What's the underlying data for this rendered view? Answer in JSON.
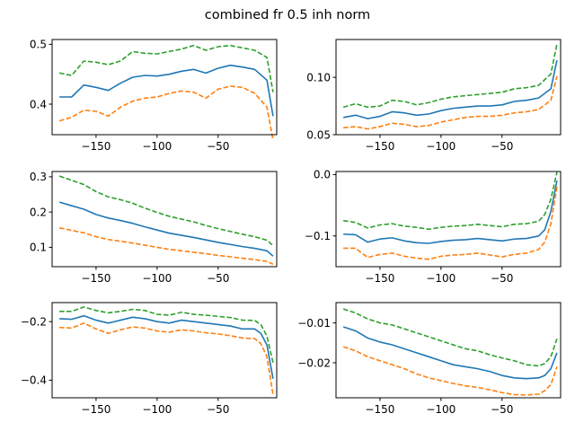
{
  "figure": {
    "title": "combined fr 0.5 inh norm"
  },
  "colors": {
    "mean": "#1f77b4",
    "lower": "#ff7f0e",
    "upper": "#2ca02c"
  },
  "chart_data": [
    {
      "type": "line",
      "xlim": [
        -186,
        -2
      ],
      "ylim": [
        0.349,
        0.508
      ],
      "xticks": [
        -150,
        -100,
        -50
      ],
      "yticks": [
        0.4,
        0.5
      ],
      "ytick_labels": [
        "0.4",
        "0.5"
      ],
      "x": [
        -180,
        -170,
        -160,
        -150,
        -140,
        -130,
        -120,
        -110,
        -100,
        -90,
        -80,
        -70,
        -60,
        -50,
        -40,
        -30,
        -20,
        -10,
        -5
      ],
      "series": [
        {
          "style": "solid",
          "color_key": "mean",
          "values": [
            0.412,
            0.412,
            0.432,
            0.428,
            0.423,
            0.435,
            0.445,
            0.448,
            0.447,
            0.45,
            0.455,
            0.458,
            0.452,
            0.46,
            0.465,
            0.462,
            0.458,
            0.44,
            0.38
          ]
        },
        {
          "style": "dashed",
          "color_key": "lower",
          "values": [
            0.372,
            0.378,
            0.39,
            0.388,
            0.38,
            0.395,
            0.405,
            0.41,
            0.412,
            0.418,
            0.422,
            0.42,
            0.41,
            0.425,
            0.43,
            0.428,
            0.418,
            0.395,
            0.34
          ]
        },
        {
          "style": "dashed",
          "color_key": "upper",
          "values": [
            0.452,
            0.448,
            0.472,
            0.47,
            0.466,
            0.472,
            0.488,
            0.485,
            0.484,
            0.488,
            0.492,
            0.498,
            0.49,
            0.496,
            0.498,
            0.494,
            0.49,
            0.478,
            0.42
          ]
        }
      ]
    },
    {
      "type": "line",
      "xlim": [
        -186,
        -2
      ],
      "ylim": [
        0.05,
        0.133
      ],
      "xticks": [
        -150,
        -100,
        -50
      ],
      "yticks": [
        0.05,
        0.1
      ],
      "ytick_labels": [
        "0.05",
        "0.10"
      ],
      "x": [
        -180,
        -170,
        -160,
        -150,
        -140,
        -130,
        -120,
        -110,
        -100,
        -90,
        -80,
        -70,
        -60,
        -50,
        -40,
        -30,
        -20,
        -10,
        -5
      ],
      "series": [
        {
          "style": "solid",
          "color_key": "mean",
          "values": [
            0.065,
            0.067,
            0.064,
            0.066,
            0.07,
            0.069,
            0.067,
            0.068,
            0.071,
            0.073,
            0.074,
            0.075,
            0.075,
            0.076,
            0.079,
            0.08,
            0.082,
            0.09,
            0.115
          ]
        },
        {
          "style": "dashed",
          "color_key": "lower",
          "values": [
            0.056,
            0.057,
            0.055,
            0.057,
            0.06,
            0.059,
            0.057,
            0.058,
            0.061,
            0.063,
            0.065,
            0.066,
            0.066,
            0.067,
            0.069,
            0.07,
            0.072,
            0.08,
            0.101
          ]
        },
        {
          "style": "dashed",
          "color_key": "upper",
          "values": [
            0.074,
            0.077,
            0.074,
            0.075,
            0.08,
            0.079,
            0.076,
            0.078,
            0.081,
            0.083,
            0.084,
            0.085,
            0.086,
            0.087,
            0.09,
            0.091,
            0.093,
            0.103,
            0.129
          ]
        }
      ]
    },
    {
      "type": "line",
      "xlim": [
        -186,
        -2
      ],
      "ylim": [
        0.045,
        0.315
      ],
      "xticks": [
        -150,
        -100,
        -50
      ],
      "yticks": [
        0.1,
        0.2,
        0.3
      ],
      "ytick_labels": [
        "0.1",
        "0.2",
        "0.3"
      ],
      "x": [
        -180,
        -170,
        -160,
        -150,
        -140,
        -130,
        -120,
        -110,
        -100,
        -90,
        -80,
        -70,
        -60,
        -50,
        -40,
        -30,
        -20,
        -10,
        -5
      ],
      "series": [
        {
          "style": "solid",
          "color_key": "mean",
          "values": [
            0.228,
            0.218,
            0.208,
            0.193,
            0.183,
            0.176,
            0.168,
            0.158,
            0.149,
            0.14,
            0.134,
            0.128,
            0.121,
            0.114,
            0.108,
            0.102,
            0.097,
            0.09,
            0.075
          ]
        },
        {
          "style": "dashed",
          "color_key": "lower",
          "values": [
            0.155,
            0.148,
            0.141,
            0.13,
            0.122,
            0.117,
            0.112,
            0.106,
            0.1,
            0.094,
            0.09,
            0.086,
            0.082,
            0.077,
            0.073,
            0.069,
            0.065,
            0.06,
            0.052
          ]
        },
        {
          "style": "dashed",
          "color_key": "upper",
          "values": [
            0.302,
            0.29,
            0.278,
            0.258,
            0.243,
            0.235,
            0.225,
            0.211,
            0.199,
            0.188,
            0.18,
            0.172,
            0.162,
            0.153,
            0.145,
            0.137,
            0.13,
            0.12,
            0.105
          ]
        }
      ]
    },
    {
      "type": "line",
      "xlim": [
        -186,
        -2
      ],
      "ylim": [
        -0.15,
        0.005
      ],
      "xticks": [
        -150,
        -100,
        -50
      ],
      "yticks": [
        -0.1,
        0.0
      ],
      "ytick_labels": [
        "−0.1",
        "0.0"
      ],
      "x": [
        -180,
        -170,
        -160,
        -150,
        -140,
        -130,
        -120,
        -110,
        -100,
        -90,
        -80,
        -70,
        -60,
        -50,
        -40,
        -30,
        -20,
        -15,
        -10,
        -5
      ],
      "series": [
        {
          "style": "solid",
          "color_key": "mean",
          "values": [
            -0.097,
            -0.098,
            -0.11,
            -0.105,
            -0.103,
            -0.108,
            -0.111,
            -0.112,
            -0.109,
            -0.107,
            -0.106,
            -0.104,
            -0.106,
            -0.108,
            -0.105,
            -0.104,
            -0.1,
            -0.09,
            -0.06,
            -0.01
          ]
        },
        {
          "style": "dashed",
          "color_key": "lower",
          "values": [
            -0.12,
            -0.12,
            -0.135,
            -0.13,
            -0.128,
            -0.133,
            -0.136,
            -0.138,
            -0.133,
            -0.131,
            -0.13,
            -0.128,
            -0.131,
            -0.134,
            -0.13,
            -0.128,
            -0.122,
            -0.11,
            -0.08,
            -0.02
          ]
        },
        {
          "style": "dashed",
          "color_key": "upper",
          "values": [
            -0.075,
            -0.078,
            -0.087,
            -0.082,
            -0.08,
            -0.084,
            -0.086,
            -0.089,
            -0.086,
            -0.084,
            -0.083,
            -0.081,
            -0.083,
            -0.085,
            -0.081,
            -0.08,
            -0.076,
            -0.065,
            -0.04,
            0.004
          ]
        }
      ]
    },
    {
      "type": "line",
      "xlim": [
        -186,
        -2
      ],
      "ylim": [
        -0.46,
        -0.135
      ],
      "xticks": [
        -150,
        -100,
        -50
      ],
      "yticks": [
        -0.4,
        -0.2
      ],
      "ytick_labels": [
        "−0.4",
        "−0.2"
      ],
      "x": [
        -180,
        -170,
        -160,
        -150,
        -140,
        -130,
        -120,
        -110,
        -100,
        -90,
        -80,
        -70,
        -60,
        -50,
        -40,
        -30,
        -20,
        -15,
        -10,
        -5
      ],
      "series": [
        {
          "style": "solid",
          "color_key": "mean",
          "values": [
            -0.19,
            -0.192,
            -0.18,
            -0.195,
            -0.205,
            -0.195,
            -0.185,
            -0.19,
            -0.2,
            -0.205,
            -0.195,
            -0.2,
            -0.205,
            -0.21,
            -0.215,
            -0.225,
            -0.225,
            -0.24,
            -0.28,
            -0.395
          ]
        },
        {
          "style": "dashed",
          "color_key": "lower",
          "values": [
            -0.22,
            -0.222,
            -0.205,
            -0.225,
            -0.24,
            -0.228,
            -0.218,
            -0.222,
            -0.232,
            -0.236,
            -0.228,
            -0.232,
            -0.238,
            -0.242,
            -0.248,
            -0.256,
            -0.258,
            -0.275,
            -0.32,
            -0.45
          ]
        },
        {
          "style": "dashed",
          "color_key": "upper",
          "values": [
            -0.165,
            -0.165,
            -0.15,
            -0.162,
            -0.17,
            -0.165,
            -0.158,
            -0.162,
            -0.175,
            -0.178,
            -0.168,
            -0.175,
            -0.178,
            -0.182,
            -0.186,
            -0.195,
            -0.196,
            -0.21,
            -0.25,
            -0.34
          ]
        }
      ]
    },
    {
      "type": "line",
      "xlim": [
        -186,
        -2
      ],
      "ylim": [
        -0.0288,
        -0.0049
      ],
      "xticks": [
        -150,
        -100,
        -50
      ],
      "yticks": [
        -0.02,
        -0.01
      ],
      "ytick_labels": [
        "−0.02",
        "−0.01"
      ],
      "x": [
        -180,
        -170,
        -160,
        -150,
        -140,
        -130,
        -120,
        -110,
        -100,
        -90,
        -80,
        -70,
        -60,
        -50,
        -40,
        -30,
        -20,
        -15,
        -10,
        -5
      ],
      "series": [
        {
          "style": "solid",
          "color_key": "mean",
          "values": [
            -0.011,
            -0.012,
            -0.0138,
            -0.0148,
            -0.0155,
            -0.0165,
            -0.0175,
            -0.0185,
            -0.0195,
            -0.0205,
            -0.021,
            -0.0215,
            -0.0222,
            -0.0232,
            -0.0238,
            -0.024,
            -0.0238,
            -0.0232,
            -0.0215,
            -0.0175
          ]
        },
        {
          "style": "dashed",
          "color_key": "lower",
          "values": [
            -0.016,
            -0.017,
            -0.0185,
            -0.0195,
            -0.0205,
            -0.0215,
            -0.0228,
            -0.0238,
            -0.0245,
            -0.0252,
            -0.0258,
            -0.0262,
            -0.0268,
            -0.0275,
            -0.028,
            -0.0281,
            -0.0279,
            -0.027,
            -0.0255,
            -0.021
          ]
        },
        {
          "style": "dashed",
          "color_key": "upper",
          "values": [
            -0.0065,
            -0.0075,
            -0.009,
            -0.01,
            -0.0105,
            -0.0115,
            -0.0125,
            -0.0135,
            -0.0145,
            -0.0155,
            -0.0165,
            -0.017,
            -0.018,
            -0.0188,
            -0.0195,
            -0.0205,
            -0.0208,
            -0.0202,
            -0.0185,
            -0.014
          ]
        }
      ]
    }
  ]
}
